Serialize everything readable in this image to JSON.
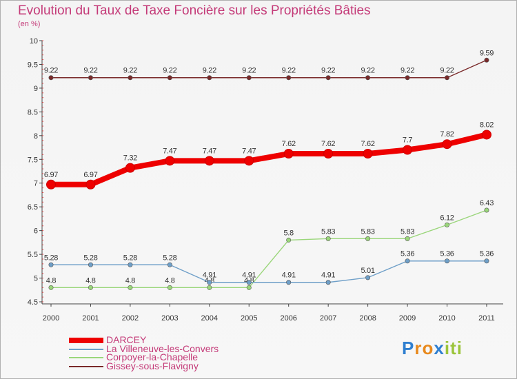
{
  "chart_data": {
    "type": "line",
    "title": "Evolution du Taux de Taxe Foncière sur les Propriétés Bâties",
    "ylabel": "(en %)",
    "xlabel": "",
    "ylim": [
      4.5,
      10
    ],
    "yticks": [
      "4.5",
      "5",
      "5.5",
      "6",
      "6.5",
      "7",
      "7.5",
      "8",
      "8.5",
      "9",
      "9.5",
      "10"
    ],
    "categories": [
      "2000",
      "2001",
      "2002",
      "2003",
      "2004",
      "2005",
      "2006",
      "2007",
      "2008",
      "2009",
      "2010",
      "2011"
    ],
    "series": [
      {
        "name": "Gissey-sous-Flavigny",
        "color": "#7a2a2a",
        "values": [
          9.22,
          9.22,
          9.22,
          9.22,
          9.22,
          9.22,
          9.22,
          9.22,
          9.22,
          9.22,
          9.22,
          9.59
        ],
        "labels": [
          "9.22",
          "9.22",
          "9.22",
          "9.22",
          "9.22",
          "9.22",
          "9.22",
          "9.22",
          "9.22",
          "9.22",
          "9.22",
          "9.59"
        ]
      },
      {
        "name": "Corpoyer-la-Chapelle",
        "color": "#9ad67a",
        "values": [
          4.8,
          4.8,
          4.8,
          4.8,
          4.8,
          4.8,
          5.8,
          5.83,
          5.83,
          5.83,
          6.12,
          6.43
        ],
        "labels": [
          "4.8",
          "4.8",
          "4.8",
          "4.8",
          "4.8",
          "4.8",
          "5.8",
          "5.83",
          "5.83",
          "5.83",
          "6.12",
          "6.43"
        ]
      },
      {
        "name": "La Villeneuve-les-Convers",
        "color": "#6e9fc8",
        "values": [
          5.28,
          5.28,
          5.28,
          5.28,
          4.91,
          4.91,
          4.91,
          4.91,
          5.01,
          5.36,
          5.36,
          5.36
        ],
        "labels": [
          "5.28",
          "5.28",
          "5.28",
          "5.28",
          "4.91",
          "4.91",
          "4.91",
          "4.91",
          "5.01",
          "5.36",
          "5.36",
          "5.36"
        ]
      },
      {
        "name": "DARCEY",
        "color": "#ee0000",
        "values": [
          6.97,
          6.97,
          7.32,
          7.47,
          7.47,
          7.47,
          7.62,
          7.62,
          7.62,
          7.7,
          7.82,
          8.02
        ],
        "labels": [
          "6.97",
          "6.97",
          "7.32",
          "7.47",
          "7.47",
          "7.47",
          "7.62",
          "7.62",
          "7.62",
          "7.7",
          "7.82",
          "8.02"
        ]
      }
    ],
    "legend_order": [
      "DARCEY",
      "La Villeneuve-les-Convers",
      "Corpoyer-la-Chapelle",
      "Gissey-sous-Flavigny"
    ],
    "legend_position": "bottom-left"
  },
  "watermark": {
    "letters": [
      "P",
      "r",
      "o",
      "x",
      "i",
      "t",
      "i"
    ],
    "colors": [
      "#2f7fd0",
      "#e8891c",
      "#e8891c",
      "#2f7fd0",
      "#9bc43a",
      "#9bc43a",
      "#9bc43a"
    ]
  }
}
